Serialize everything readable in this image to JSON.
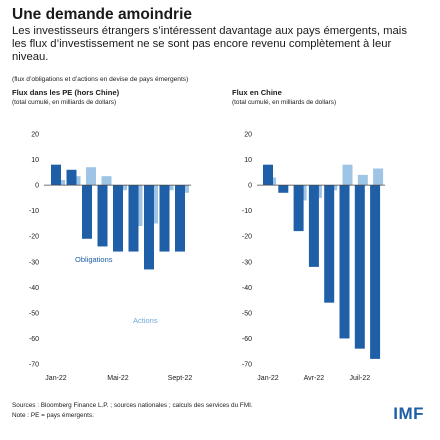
{
  "header": {
    "title": "Une demande amoindrie",
    "subtitle": "Les investisseurs étrangers s’intéressent davantage aux pays émergents, mais les flux d’investissement ne se sont pas encore revenu complètement à leur niveau.",
    "note": "(flux d’obligations et d’actions en devise de pays émergents)"
  },
  "footer": {
    "sources": "Sources : Bloomberg Finance L.P. ; sources nationales ; calculs des services du FMI.",
    "note": "Note : PE = pays émergents.",
    "logo": "IMF"
  },
  "colors": {
    "bonds": "#1f5fa8",
    "equities": "#9ec4e6",
    "text": "#1a1a1a",
    "zero_line": "#444444"
  },
  "chart_data": [
    {
      "type": "bar",
      "title": "Flux dans les PE (hors Chine)",
      "subtitle": "(total cumulé, en milliards de dollars)",
      "ylim": [
        -70,
        20
      ],
      "yticks": [
        20,
        10,
        0,
        -10,
        -20,
        -30,
        -40,
        -50,
        -60,
        -70
      ],
      "xtick_labels": [
        {
          "index": 0,
          "label": "Jan-22"
        },
        {
          "index": 4,
          "label": "Mai-22"
        },
        {
          "index": 8,
          "label": "Sept-22"
        }
      ],
      "series": [
        {
          "name": "Obligations",
          "values": [
            8,
            6,
            -21,
            -24,
            -26,
            -26,
            -33,
            -26,
            -26
          ]
        },
        {
          "name": "Actions",
          "values": [
            2,
            3.5,
            7,
            3.5,
            -2,
            -16,
            -15,
            -2,
            -3
          ]
        }
      ],
      "annotations": [
        {
          "text": "Obligations",
          "series": "Obligations"
        },
        {
          "text": "Actions",
          "series": "Actions"
        }
      ]
    },
    {
      "type": "bar",
      "title": "Flux en Chine",
      "subtitle": "(total cumulé, en milliards de dollars)",
      "ylim": [
        -70,
        20
      ],
      "yticks": [
        20,
        10,
        0,
        -10,
        -20,
        -30,
        -40,
        -50,
        -60,
        -70
      ],
      "xtick_labels": [
        {
          "index": 0,
          "label": "Jan-22"
        },
        {
          "index": 3,
          "label": "Avr-22"
        },
        {
          "index": 6,
          "label": "Juil-22"
        }
      ],
      "series": [
        {
          "name": "Obligations",
          "values": [
            8,
            -3,
            -18,
            -32,
            -46,
            -60,
            -64,
            -68
          ]
        },
        {
          "name": "Actions",
          "values": [
            3,
            0,
            -6,
            -5,
            -2,
            8,
            4,
            6.5
          ]
        }
      ]
    }
  ]
}
